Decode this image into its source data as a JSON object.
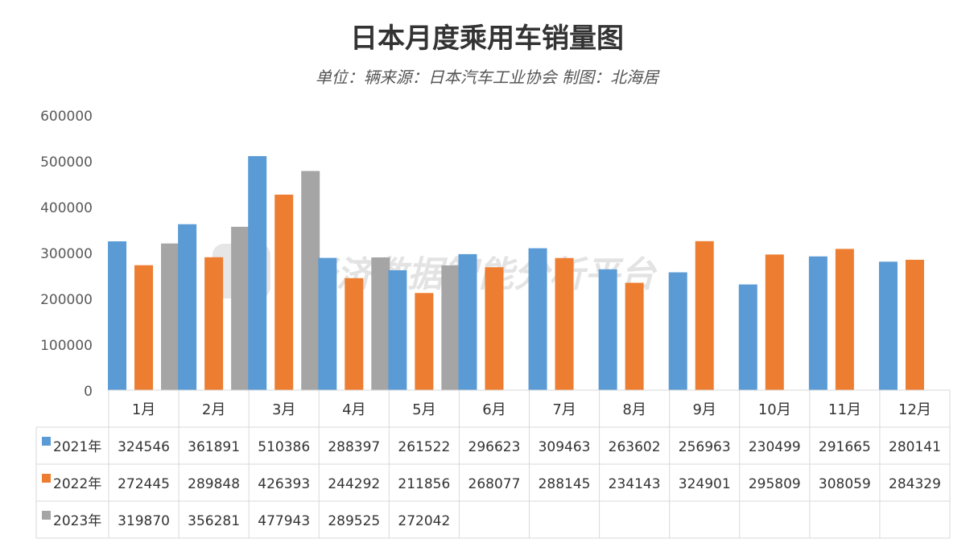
{
  "chart_data": {
    "type": "bar",
    "title": "日本月度乘用车销量图",
    "subtitle": "单位：辆来源：日本汽车工业协会 制图：北海居",
    "categories": [
      "1月",
      "2月",
      "3月",
      "4月",
      "5月",
      "6月",
      "7月",
      "8月",
      "9月",
      "10月",
      "11月",
      "12月"
    ],
    "series": [
      {
        "name": "2021年",
        "color": "#5b9bd5",
        "values": [
          324546,
          361891,
          510386,
          288397,
          261522,
          296623,
          309463,
          263602,
          256963,
          230499,
          291665,
          280141
        ]
      },
      {
        "name": "2022年",
        "color": "#ed7d31",
        "values": [
          272445,
          289848,
          426393,
          244292,
          211856,
          268077,
          288145,
          234143,
          324901,
          295809,
          308059,
          284329
        ]
      },
      {
        "name": "2023年",
        "color": "#a5a5a5",
        "values": [
          319870,
          356281,
          477943,
          289525,
          272042,
          null,
          null,
          null,
          null,
          null,
          null,
          null
        ]
      }
    ],
    "y_ticks": [
      "0",
      "100000",
      "200000",
      "300000",
      "400000",
      "500000",
      "600000"
    ],
    "ylim": [
      0,
      600000
    ],
    "grid": false,
    "legend": "data-table",
    "watermark": "经济数据智能分析平台"
  }
}
